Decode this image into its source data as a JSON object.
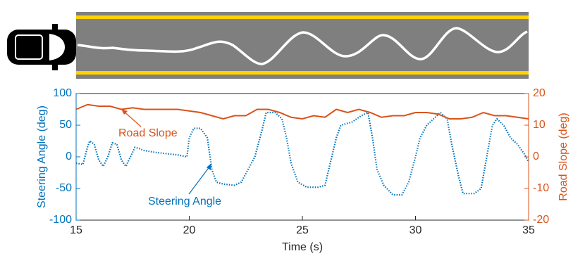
{
  "chart_data": {
    "type": "line",
    "xlabel": "Time (s)",
    "ylabel": "Steering Angle (deg)",
    "y2label": "Road Slope (deg)",
    "xlim": [
      15,
      35
    ],
    "xticks": [
      15,
      20,
      25,
      30,
      35
    ],
    "ylim": [
      -100,
      100
    ],
    "yticks": [
      -100,
      -50,
      0,
      50,
      100
    ],
    "y2lim": [
      -20,
      20
    ],
    "y2ticks": [
      -20,
      -10,
      0,
      10,
      20
    ],
    "series": [
      {
        "name": "Steering Angle",
        "color": "#0072bd",
        "dash": "dotted",
        "x": [
          15,
          15.3,
          15.5,
          15.6,
          15.8,
          16.0,
          16.2,
          16.4,
          16.6,
          16.8,
          17.0,
          17.2,
          17.4,
          17.6,
          17.8,
          18.0,
          18.5,
          19.0,
          19.5,
          19.9,
          20.0,
          20.2,
          20.5,
          20.8,
          21.0,
          21.2,
          21.5,
          22.0,
          22.3,
          22.6,
          22.9,
          23.2,
          23.4,
          23.8,
          24.1,
          24.3,
          24.5,
          24.8,
          25.2,
          25.7,
          26.0,
          26.3,
          26.5,
          26.7,
          27.2,
          27.6,
          27.9,
          28.1,
          28.3,
          28.6,
          29.0,
          29.4,
          29.7,
          30.0,
          30.2,
          30.5,
          30.8,
          31.1,
          31.4,
          31.6,
          31.9,
          32.1,
          32.6,
          32.9,
          33.1,
          33.4,
          33.6,
          33.9,
          34.2,
          34.5,
          34.8,
          35.0
        ],
        "values": [
          -10,
          -12,
          15,
          25,
          20,
          -5,
          -15,
          0,
          22,
          20,
          -5,
          -15,
          0,
          15,
          13,
          10,
          7,
          5,
          3,
          0,
          30,
          45,
          45,
          30,
          -20,
          -40,
          -43,
          -45,
          -40,
          -20,
          0,
          40,
          70,
          70,
          60,
          30,
          -10,
          -40,
          -48,
          -48,
          -45,
          0,
          30,
          50,
          55,
          65,
          70,
          30,
          -20,
          -45,
          -60,
          -60,
          -40,
          0,
          30,
          50,
          60,
          70,
          60,
          20,
          -30,
          -58,
          -58,
          -50,
          -10,
          50,
          60,
          50,
          30,
          20,
          5,
          -8
        ]
      },
      {
        "name": "Road Slope",
        "color": "#d95319",
        "axis": "y2",
        "x": [
          15,
          15.5,
          16,
          16.5,
          17,
          17.5,
          18,
          18.5,
          19,
          19.5,
          20,
          20.5,
          21,
          21.5,
          22,
          22.5,
          23,
          23.5,
          24,
          24.5,
          25,
          25.5,
          26,
          26.5,
          27,
          27.5,
          28,
          28.5,
          29,
          29.5,
          30,
          30.5,
          31,
          31.5,
          32,
          32.5,
          33,
          33.5,
          34,
          34.5,
          35
        ],
        "values": [
          15,
          16.5,
          16,
          16,
          15,
          15.5,
          15,
          15,
          15,
          15,
          14.5,
          14,
          13,
          12,
          13,
          13,
          15,
          15,
          14,
          12.5,
          12,
          13,
          12.5,
          15,
          14,
          15,
          14,
          12.5,
          13,
          13,
          14,
          14,
          13.5,
          12,
          12,
          12.5,
          14,
          13,
          13,
          12.5,
          12
        ]
      }
    ],
    "annotations": [
      {
        "text": "Road Slope"
      },
      {
        "text": "Steering Angle"
      }
    ]
  }
}
